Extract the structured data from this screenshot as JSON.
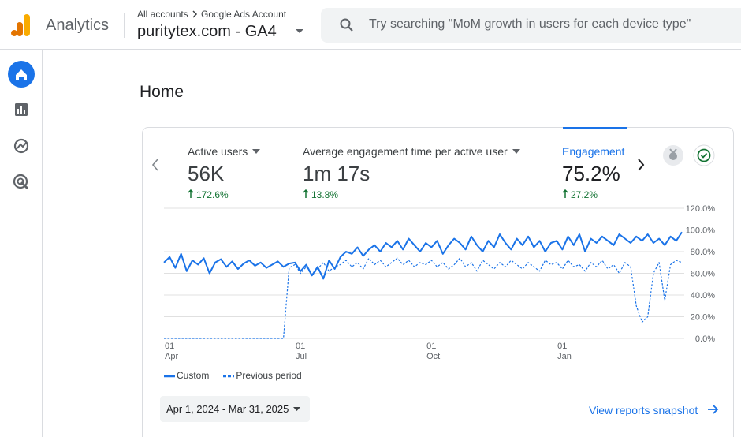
{
  "header": {
    "app_name": "Analytics",
    "breadcrumb": [
      "All accounts",
      "Google Ads Account"
    ],
    "property": "puritytex.com - GA4"
  },
  "search": {
    "placeholder": "Try searching \"MoM growth in users for each device type\""
  },
  "page": {
    "title": "Home"
  },
  "metrics": [
    {
      "label": "Active users",
      "value": "56K",
      "change": "172.6%"
    },
    {
      "label": "Average engagement time per active user",
      "value": "1m 17s",
      "change": "13.8%"
    },
    {
      "label": "Engagement",
      "value": "75.2%",
      "change": "27.2%"
    }
  ],
  "chart_data": {
    "type": "line",
    "categories": [
      "01 Apr",
      null,
      null,
      null,
      null,
      null,
      null,
      null,
      null,
      null,
      null,
      null,
      null,
      null,
      null,
      null,
      null,
      null,
      null,
      null,
      null,
      null,
      null,
      "01 Jul",
      null,
      null,
      null,
      null,
      null,
      null,
      null,
      null,
      null,
      null,
      null,
      null,
      null,
      null,
      null,
      null,
      null,
      null,
      null,
      null,
      null,
      null,
      "01 Oct",
      null,
      null,
      null,
      null,
      null,
      null,
      null,
      null,
      null,
      null,
      null,
      null,
      null,
      null,
      null,
      null,
      null,
      null,
      null,
      null,
      null,
      null,
      "01 Jan",
      null,
      null,
      null,
      null,
      null,
      null,
      null,
      null,
      null,
      null,
      null,
      null,
      null,
      null,
      null,
      null,
      null,
      null,
      null,
      null,
      null,
      null
    ],
    "series": [
      {
        "name": "Custom",
        "color": "#1a73e8",
        "dashed": false,
        "values": [
          70,
          75,
          65,
          78,
          62,
          72,
          68,
          74,
          60,
          70,
          73,
          66,
          71,
          64,
          69,
          72,
          67,
          70,
          65,
          68,
          71,
          66,
          69,
          70,
          62,
          68,
          58,
          66,
          55,
          72,
          64,
          75,
          80,
          78,
          84,
          76,
          82,
          86,
          80,
          88,
          84,
          90,
          82,
          92,
          86,
          80,
          88,
          84,
          90,
          78,
          86,
          92,
          88,
          82,
          94,
          86,
          80,
          90,
          84,
          96,
          88,
          82,
          92,
          86,
          94,
          84,
          90,
          80,
          88,
          90,
          82,
          94,
          86,
          96,
          80,
          92,
          88,
          94,
          90,
          86,
          96,
          92,
          88,
          94,
          90,
          96,
          88,
          92,
          86,
          94,
          90,
          98
        ]
      },
      {
        "name": "Previous period",
        "color": "#1a73e8",
        "dashed": true,
        "values": [
          0,
          0,
          0,
          0,
          0,
          0,
          0,
          0,
          0,
          0,
          0,
          0,
          0,
          0,
          0,
          0,
          0,
          0,
          0,
          0,
          0,
          0,
          65,
          68,
          60,
          66,
          58,
          64,
          70,
          62,
          66,
          68,
          72,
          66,
          70,
          64,
          74,
          68,
          72,
          66,
          70,
          74,
          68,
          72,
          66,
          70,
          68,
          72,
          66,
          70,
          64,
          68,
          74,
          66,
          70,
          62,
          72,
          68,
          64,
          70,
          66,
          72,
          68,
          64,
          70,
          66,
          62,
          72,
          68,
          70,
          64,
          72,
          66,
          68,
          62,
          70,
          66,
          72,
          64,
          68,
          60,
          70,
          66,
          30,
          15,
          20,
          60,
          70,
          35,
          68,
          72,
          70
        ]
      }
    ],
    "ylim": [
      0,
      120
    ],
    "yticks": [
      {
        "value": 0,
        "label": "0.0%"
      },
      {
        "value": 20,
        "label": "20.0%"
      },
      {
        "value": 40,
        "label": "40.0%"
      },
      {
        "value": 60,
        "label": "60.0%"
      },
      {
        "value": 80,
        "label": "80.0%"
      },
      {
        "value": 100,
        "label": "100.0%"
      },
      {
        "value": 120,
        "label": "120.0%"
      }
    ],
    "grid": true
  },
  "date_range": "Apr 1, 2024 - Mar 31, 2025",
  "footer_link": "View reports snapshot"
}
